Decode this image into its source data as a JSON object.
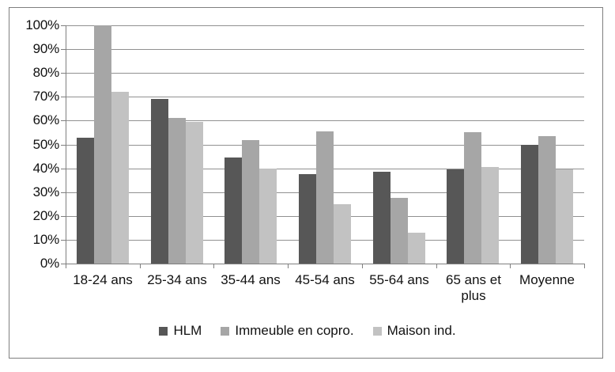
{
  "chart_data": {
    "type": "bar",
    "categories": [
      "18-24 ans",
      "25-34 ans",
      "35-44 ans",
      "45-54 ans",
      "55-64 ans",
      "65 ans et plus",
      "Moyenne"
    ],
    "series": [
      {
        "name": "HLM",
        "color": "#575757",
        "values": [
          53,
          69,
          44.5,
          37.5,
          38.5,
          39.5,
          50
        ]
      },
      {
        "name": "Immeuble en copro.",
        "color": "#a6a6a6",
        "values": [
          100,
          61,
          52,
          55.5,
          27.5,
          55,
          53.5
        ]
      },
      {
        "name": "Maison ind.",
        "color": "#c2c2c2",
        "values": [
          72,
          59.5,
          40,
          25,
          13,
          40.5,
          39.5
        ]
      }
    ],
    "title": "",
    "xlabel": "",
    "ylabel": "",
    "ylim": [
      0,
      100
    ],
    "ytick_step": 10,
    "ytick_suffix": "%",
    "y_tick_labels": [
      "0%",
      "10%",
      "20%",
      "30%",
      "40%",
      "50%",
      "60%",
      "70%",
      "80%",
      "90%",
      "100%"
    ],
    "grid": true,
    "legend_position": "bottom",
    "colors": {
      "grid": "#919191",
      "axis": "#7f7f7f",
      "border": "#7f7f7f",
      "text": "#111111",
      "background": "#ffffff"
    }
  }
}
